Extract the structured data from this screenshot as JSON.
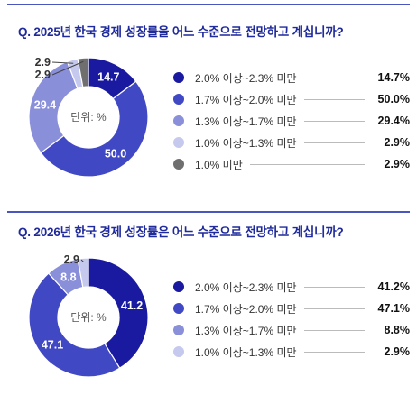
{
  "colors": {
    "title": "#1f2a9c",
    "divider": "#4a56c0",
    "segments": [
      "#1a1aa0",
      "#4148c4",
      "#8a8fda",
      "#c6c9ee",
      "#6f6f6f"
    ]
  },
  "chart_data": [
    {
      "type": "pie",
      "title": "Q. 2025년 한국 경제 성장률을 어느 수준으로 전망하고 계십니까?",
      "center_label": "단위: %",
      "categories": [
        "2.0% 이상~2.3% 미만",
        "1.7% 이상~2.0% 미만",
        "1.3% 이상~1.7% 미만",
        "1.0% 이상~1.3% 미만",
        "1.0% 미만"
      ],
      "values": [
        14.7,
        50.0,
        29.4,
        2.9,
        2.9
      ],
      "value_labels": [
        "14.7",
        "50.0",
        "29.4",
        "2.9",
        "2.9"
      ],
      "legend_values": [
        "14.7%",
        "50.0%",
        "29.4%",
        "2.9%",
        "2.9%"
      ]
    },
    {
      "type": "pie",
      "title": "Q. 2026년 한국 경제 성장률은 어느 수준으로 전망하고 계십니까?",
      "center_label": "단위: %",
      "categories": [
        "2.0% 이상~2.3% 미만",
        "1.7% 이상~2.0% 미만",
        "1.3% 이상~1.7% 미만",
        "1.0% 이상~1.3% 미만"
      ],
      "values": [
        41.2,
        47.1,
        8.8,
        2.9
      ],
      "value_labels": [
        "41.2",
        "47.1",
        "8.8",
        "2.9"
      ],
      "legend_values": [
        "41.2%",
        "47.1%",
        "8.8%",
        "2.9%"
      ]
    }
  ]
}
